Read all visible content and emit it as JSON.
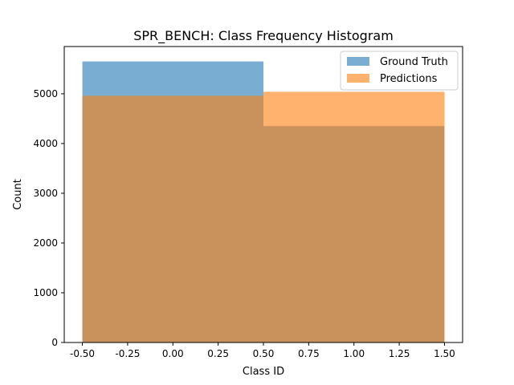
{
  "chart_data": {
    "type": "bar",
    "title": "SPR_BENCH: Class Frequency Histogram",
    "xlabel": "Class ID",
    "ylabel": "Count",
    "xlim": [
      -0.6,
      1.6
    ],
    "ylim": [
      0,
      5950
    ],
    "xticks": [
      "-0.50",
      "-0.25",
      "0.00",
      "0.25",
      "0.50",
      "0.75",
      "1.00",
      "1.25",
      "1.50"
    ],
    "yticks": [
      "0",
      "1000",
      "2000",
      "3000",
      "4000",
      "5000"
    ],
    "bins": [
      [
        -0.5,
        0.5
      ],
      [
        0.5,
        1.5
      ]
    ],
    "series": [
      {
        "name": "Ground Truth",
        "values": [
          5650,
          4350
        ],
        "color": "#1f77b4",
        "alpha": 0.6
      },
      {
        "name": "Predictions",
        "values": [
          4960,
          5040
        ],
        "color": "#ff7f0e",
        "alpha": 0.6
      }
    ],
    "legend_position": "top-right",
    "grid": false
  }
}
